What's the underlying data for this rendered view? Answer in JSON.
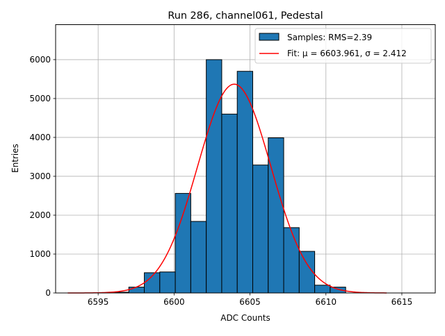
{
  "chart_data": {
    "type": "bar",
    "title": "Run 286, channel061, Pedestal",
    "xlabel": "ADC Counts",
    "ylabel": "Entries",
    "xlim": [
      6592.2,
      6617.2
    ],
    "ylim": [
      0,
      6900
    ],
    "xticks": [
      6595,
      6600,
      6605,
      6610,
      6615
    ],
    "yticks": [
      0,
      1000,
      2000,
      3000,
      4000,
      5000,
      6000
    ],
    "grid": true,
    "legend_position": "top-right",
    "histogram": {
      "name": "Samples: RMS=2.39",
      "bin_width": 1.02,
      "bin_edges": [
        6596.0,
        6597.02,
        6598.04,
        6599.06,
        6600.08,
        6601.1,
        6602.12,
        6603.14,
        6604.16,
        6605.18,
        6606.2,
        6607.22,
        6608.24,
        6609.26,
        6610.28,
        6611.3
      ],
      "values": [
        20,
        150,
        520,
        540,
        2560,
        1840,
        6000,
        4600,
        5700,
        3290,
        3990,
        1680,
        1070,
        200,
        150
      ]
    },
    "fit": {
      "name": "Fit: μ = 6603.961, σ = 2.412",
      "mu": 6603.961,
      "sigma": 2.412,
      "amplitude": 5370,
      "x_range": [
        6593.0,
        6614.0
      ]
    },
    "colors": {
      "bar_fill": "#1f77b4",
      "bar_edge": "#000000",
      "fit_line": "#ff0000",
      "grid": "#b0b0b0"
    }
  }
}
